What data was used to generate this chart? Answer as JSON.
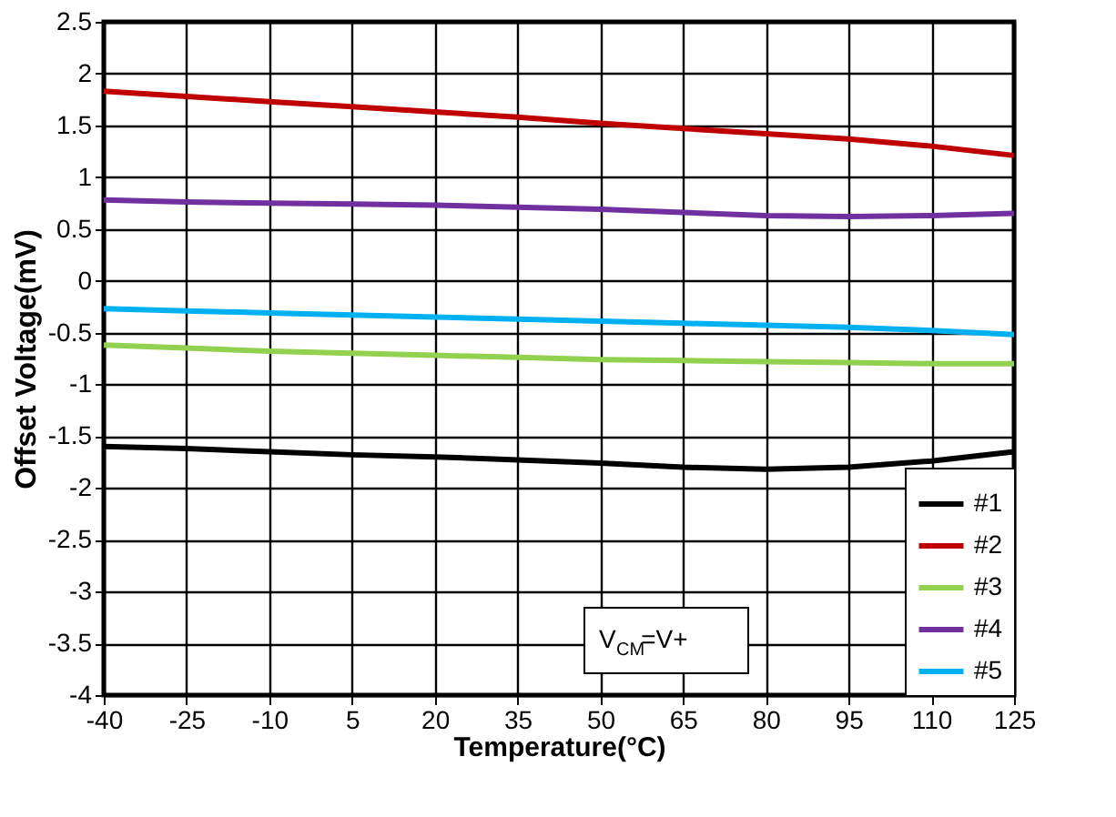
{
  "chart_data": {
    "type": "line",
    "xlabel": "Temperature(°C)",
    "ylabel": "Offset Voltage(mV)",
    "x": [
      -40,
      -25,
      -10,
      5,
      20,
      35,
      50,
      65,
      80,
      95,
      110,
      125
    ],
    "series": [
      {
        "name": "#1",
        "color": "#000000",
        "values": [
          -1.6,
          -1.62,
          -1.65,
          -1.68,
          -1.7,
          -1.73,
          -1.76,
          -1.8,
          -1.82,
          -1.8,
          -1.74,
          -1.65
        ]
      },
      {
        "name": "#2",
        "color": "#c00000",
        "values": [
          1.83,
          1.78,
          1.73,
          1.68,
          1.63,
          1.58,
          1.52,
          1.47,
          1.42,
          1.37,
          1.3,
          1.21
        ]
      },
      {
        "name": "#3",
        "color": "#92d050",
        "values": [
          -0.62,
          -0.65,
          -0.68,
          -0.7,
          -0.72,
          -0.74,
          -0.76,
          -0.77,
          -0.78,
          -0.79,
          -0.8,
          -0.8
        ]
      },
      {
        "name": "#4",
        "color": "#7030a0",
        "values": [
          0.78,
          0.76,
          0.75,
          0.74,
          0.73,
          0.71,
          0.69,
          0.66,
          0.63,
          0.62,
          0.63,
          0.65
        ]
      },
      {
        "name": "#5",
        "color": "#00b0f0",
        "values": [
          -0.27,
          -0.29,
          -0.31,
          -0.33,
          -0.35,
          -0.37,
          -0.39,
          -0.41,
          -0.43,
          -0.45,
          -0.48,
          -0.52
        ]
      }
    ],
    "xlim": [
      -40,
      125
    ],
    "xticks": [
      -40,
      -25,
      -10,
      5,
      20,
      35,
      50,
      65,
      80,
      95,
      110,
      125
    ],
    "ylim": [
      -4,
      2.5
    ],
    "yticks": [
      -4,
      -3.5,
      -3,
      -2.5,
      -2,
      -1.5,
      -1,
      -0.5,
      0,
      0.5,
      1,
      1.5,
      2,
      2.5
    ],
    "grid": true,
    "legend": "bottom right",
    "marker": "none",
    "line_style": "solid",
    "annotations": [
      "V$_{CM}$=V+"
    ]
  }
}
